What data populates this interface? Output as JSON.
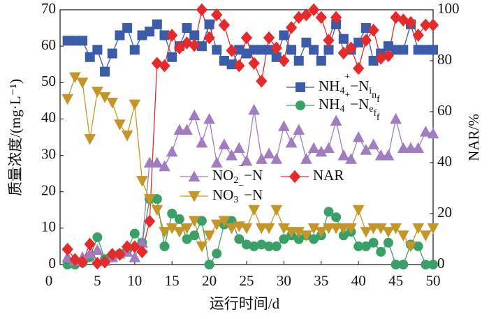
{
  "chart_data": {
    "type": "line",
    "xlabel": "运行时间/d",
    "ylabel": "质量浓度/(mg·L⁻¹)",
    "y2label": "NAR/%",
    "x": [
      1,
      2,
      3,
      4,
      5,
      6,
      7,
      8,
      9,
      10,
      11,
      12,
      13,
      14,
      15,
      16,
      17,
      18,
      19,
      20,
      21,
      22,
      23,
      24,
      25,
      26,
      27,
      28,
      29,
      30,
      31,
      32,
      33,
      34,
      35,
      36,
      37,
      38,
      39,
      40,
      41,
      42,
      43,
      44,
      45,
      46,
      47,
      48,
      49,
      50
    ],
    "xlim": [
      0,
      50
    ],
    "xticks": [
      0,
      5,
      10,
      15,
      20,
      25,
      30,
      35,
      40,
      45,
      50
    ],
    "ylim": [
      0,
      70
    ],
    "yticks": [
      0,
      10,
      20,
      30,
      40,
      50,
      60,
      70
    ],
    "y2lim": [
      0,
      100
    ],
    "y2ticks": [
      0,
      20,
      40,
      60,
      80,
      100
    ],
    "series": [
      {
        "name": "NH4+−Ninf",
        "color": "#3b5ca8",
        "marker": "square",
        "values": [
          61.5,
          61.5,
          61.5,
          57,
          59,
          53,
          58,
          63,
          65,
          59,
          63,
          64,
          66,
          63,
          57,
          60,
          65,
          63,
          60,
          66,
          59,
          56,
          55,
          59,
          58,
          59,
          59,
          59,
          57,
          63,
          59,
          56,
          61,
          59,
          56,
          59,
          66,
          62,
          59,
          61,
          65,
          56,
          58,
          60,
          59,
          59,
          66,
          59,
          59,
          59
        ]
      },
      {
        "name": "NH4+−Neff",
        "color": "#3aa068",
        "marker": "circle",
        "values": [
          0,
          0,
          0.5,
          2,
          7.5,
          1.5,
          2,
          3,
          4,
          8.5,
          6,
          18,
          18,
          5,
          14,
          12.5,
          7,
          8,
          12,
          0,
          3,
          11,
          12,
          7,
          5.5,
          5,
          5.5,
          5,
          5,
          7,
          8,
          7,
          8,
          7,
          8,
          14.5,
          13,
          8,
          9,
          5,
          5,
          6,
          3.5,
          6,
          0,
          0,
          5.5,
          5,
          0,
          0
        ]
      },
      {
        "name": "NO2−−N",
        "color": "#a07cc0",
        "marker": "triangle-up",
        "values": [
          2,
          1,
          2,
          3,
          4,
          1,
          2,
          3,
          3.5,
          2,
          6,
          28,
          28,
          27,
          31,
          37,
          37,
          41,
          33.5,
          40,
          28,
          33,
          30,
          32,
          28.5,
          42.5,
          29,
          30.5,
          29,
          38,
          33.5,
          37,
          29,
          32,
          31,
          32,
          39.5,
          30,
          29,
          35,
          31.5,
          33,
          30,
          30,
          40,
          32,
          32,
          32,
          36.5,
          36
        ]
      },
      {
        "name": "NAR",
        "color": "#e42a2a",
        "marker": "diamond",
        "axis": "y2",
        "values": [
          6,
          2,
          1,
          8,
          0.5,
          1,
          4,
          4,
          7,
          7,
          5,
          17,
          79,
          78,
          90,
          85,
          87,
          86,
          100,
          89,
          98,
          94,
          84,
          78,
          89,
          79,
          72,
          89,
          85,
          80,
          93,
          97,
          98,
          100,
          97,
          88,
          97,
          83,
          85,
          77,
          88,
          92,
          81,
          82,
          97,
          96,
          95,
          90,
          94,
          94
        ]
      },
      {
        "name": "NO3−−N",
        "color": "#c4962a",
        "marker": "triangle-down",
        "values": [
          45.5,
          51.5,
          50,
          34.5,
          47.5,
          46,
          44.5,
          38.5,
          35.5,
          44,
          23,
          18,
          15,
          9,
          10,
          9,
          10,
          12,
          5,
          8,
          11,
          12,
          10,
          10.5,
          10,
          15,
          10,
          10,
          15,
          10,
          9,
          9,
          8,
          10,
          9,
          10,
          10,
          10,
          10,
          15,
          9,
          10,
          10,
          9,
          10,
          8,
          5,
          10,
          8,
          10
        ]
      }
    ]
  }
}
